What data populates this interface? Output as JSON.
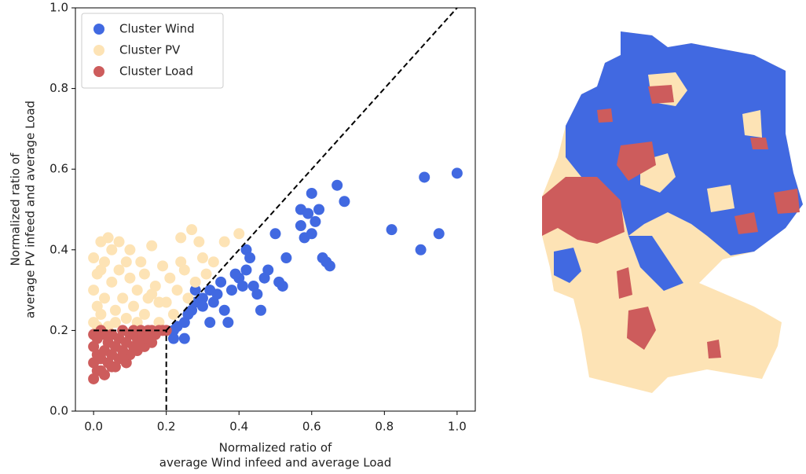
{
  "chart_data": {
    "type": "scatter",
    "xlabel": [
      "Normalized ratio of",
      "average Wind infeed and average Load"
    ],
    "ylabel": [
      "Normalized ratio of",
      "average PV infeed and average Load"
    ],
    "xlim": [
      -0.05,
      1.05
    ],
    "ylim": [
      0,
      1
    ],
    "xticks": [
      {
        "value": 0,
        "label": "0.0"
      },
      0.2,
      0.4,
      0.6,
      0.8,
      {
        "value": 1,
        "label": "1.0"
      }
    ],
    "yticks": [
      {
        "value": 0,
        "label": "0.0"
      },
      0.2,
      0.4,
      0.6,
      0.8,
      {
        "value": 1,
        "label": "1.0"
      }
    ],
    "legend": "upper left",
    "reference_lines": [
      {
        "x": [
          0,
          0.2,
          0.2
        ],
        "y": [
          0.2,
          0.2,
          0
        ]
      },
      {
        "x": [
          0.2,
          1
        ],
        "y": [
          0.2,
          1
        ]
      }
    ],
    "series": [
      {
        "name": "Cluster Wind",
        "color": "#4169e1",
        "x": [
          0.22,
          0.22,
          0.25,
          0.25,
          0.27,
          0.28,
          0.3,
          0.32,
          0.32,
          0.33,
          0.35,
          0.36,
          0.37,
          0.38,
          0.4,
          0.42,
          0.42,
          0.43,
          0.44,
          0.45,
          0.46,
          0.47,
          0.48,
          0.5,
          0.51,
          0.52,
          0.53,
          0.57,
          0.57,
          0.58,
          0.59,
          0.6,
          0.6,
          0.61,
          0.62,
          0.63,
          0.64,
          0.65,
          0.67,
          0.69,
          0.82,
          0.9,
          0.91,
          0.95,
          1.0,
          0.28,
          0.3,
          0.34,
          0.39,
          0.41,
          0.23,
          0.26
        ],
        "values": [
          0.2,
          0.18,
          0.18,
          0.22,
          0.25,
          0.27,
          0.28,
          0.3,
          0.22,
          0.27,
          0.32,
          0.25,
          0.22,
          0.3,
          0.33,
          0.35,
          0.4,
          0.38,
          0.31,
          0.29,
          0.25,
          0.33,
          0.35,
          0.44,
          0.32,
          0.31,
          0.38,
          0.5,
          0.46,
          0.43,
          0.49,
          0.54,
          0.44,
          0.47,
          0.5,
          0.38,
          0.37,
          0.36,
          0.56,
          0.52,
          0.45,
          0.4,
          0.58,
          0.44,
          0.59,
          0.3,
          0.26,
          0.29,
          0.34,
          0.31,
          0.21,
          0.24
        ]
      },
      {
        "name": "Cluster PV",
        "color": "#fde3b5",
        "x": [
          0.0,
          0.0,
          0.0,
          0.01,
          0.01,
          0.02,
          0.02,
          0.03,
          0.03,
          0.04,
          0.04,
          0.05,
          0.05,
          0.06,
          0.07,
          0.07,
          0.08,
          0.09,
          0.1,
          0.1,
          0.11,
          0.12,
          0.13,
          0.14,
          0.14,
          0.15,
          0.16,
          0.17,
          0.18,
          0.19,
          0.2,
          0.21,
          0.22,
          0.23,
          0.24,
          0.25,
          0.26,
          0.27,
          0.28,
          0.29,
          0.3,
          0.31,
          0.33,
          0.36,
          0.4,
          0.02,
          0.06,
          0.12,
          0.18,
          0.24,
          0.01,
          0.09,
          0.16
        ],
        "values": [
          0.22,
          0.3,
          0.38,
          0.26,
          0.34,
          0.42,
          0.24,
          0.28,
          0.37,
          0.43,
          0.21,
          0.32,
          0.4,
          0.25,
          0.35,
          0.42,
          0.28,
          0.23,
          0.33,
          0.4,
          0.26,
          0.3,
          0.37,
          0.24,
          0.34,
          0.28,
          0.41,
          0.31,
          0.22,
          0.36,
          0.27,
          0.33,
          0.24,
          0.3,
          0.37,
          0.35,
          0.28,
          0.45,
          0.32,
          0.42,
          0.38,
          0.34,
          0.37,
          0.42,
          0.44,
          0.35,
          0.22,
          0.22,
          0.27,
          0.43,
          0.21,
          0.37,
          0.29
        ]
      },
      {
        "name": "Cluster Load",
        "color": "#cd5c5c",
        "x": [
          0.0,
          0.0,
          0.0,
          0.0,
          0.01,
          0.01,
          0.01,
          0.02,
          0.02,
          0.03,
          0.03,
          0.03,
          0.04,
          0.04,
          0.05,
          0.05,
          0.06,
          0.06,
          0.07,
          0.07,
          0.08,
          0.08,
          0.09,
          0.09,
          0.1,
          0.1,
          0.11,
          0.11,
          0.12,
          0.12,
          0.13,
          0.13,
          0.14,
          0.14,
          0.15,
          0.15,
          0.16,
          0.16,
          0.17,
          0.18,
          0.19,
          0.2,
          0.02,
          0.05,
          0.08
        ],
        "values": [
          0.08,
          0.12,
          0.16,
          0.19,
          0.1,
          0.14,
          0.18,
          0.13,
          0.2,
          0.09,
          0.15,
          0.19,
          0.12,
          0.17,
          0.14,
          0.19,
          0.11,
          0.16,
          0.18,
          0.13,
          0.15,
          0.2,
          0.12,
          0.17,
          0.14,
          0.19,
          0.16,
          0.2,
          0.15,
          0.18,
          0.17,
          0.2,
          0.16,
          0.19,
          0.18,
          0.2,
          0.17,
          0.2,
          0.19,
          0.2,
          0.2,
          0.2,
          0.1,
          0.11,
          0.13
        ]
      }
    ]
  }
}
